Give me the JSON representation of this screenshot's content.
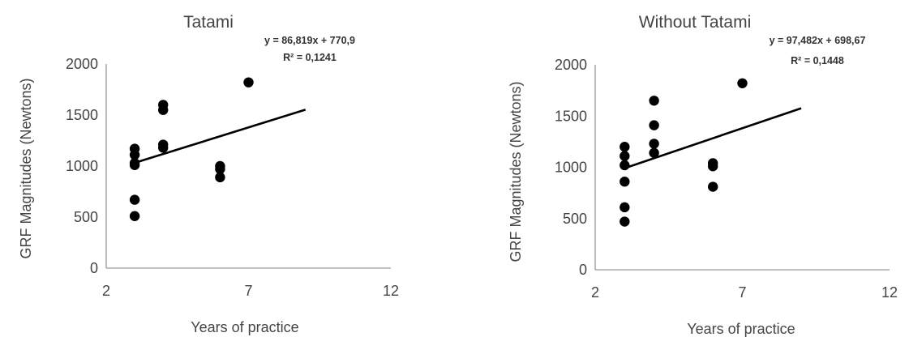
{
  "chart_data": [
    {
      "type": "scatter",
      "title": "Tatami",
      "xlabel": "Years of practice",
      "ylabel": "GRF Magnitudes  (Newtons)",
      "xlim": [
        2,
        12
      ],
      "ylim": [
        0,
        2000
      ],
      "xticks": [
        "2",
        "7",
        "12"
      ],
      "yticks": [
        "0",
        "500",
        "1000",
        "1500",
        "2000"
      ],
      "grid": false,
      "legend": "none",
      "points": [
        {
          "x": 3,
          "y": 510
        },
        {
          "x": 3,
          "y": 670
        },
        {
          "x": 3,
          "y": 1010
        },
        {
          "x": 3,
          "y": 1030
        },
        {
          "x": 3,
          "y": 1110
        },
        {
          "x": 3,
          "y": 1170
        },
        {
          "x": 4,
          "y": 1180
        },
        {
          "x": 4,
          "y": 1210
        },
        {
          "x": 4,
          "y": 1550
        },
        {
          "x": 4,
          "y": 1600
        },
        {
          "x": 6,
          "y": 890
        },
        {
          "x": 6,
          "y": 970
        },
        {
          "x": 6,
          "y": 1000
        },
        {
          "x": 7,
          "y": 1820
        }
      ],
      "trendline": {
        "slope": 86.819,
        "intercept": 770.9,
        "x_range": [
          3,
          9
        ]
      },
      "equation": "y = 86,819x + 770,9",
      "r_squared": "R² = 0,1241"
    },
    {
      "type": "scatter",
      "title": "Without Tatami",
      "xlabel": "Years of practice",
      "ylabel": "GRF Magnitudes (Newtons)",
      "xlim": [
        2,
        12
      ],
      "ylim": [
        0,
        2000
      ],
      "xticks": [
        "2",
        "7",
        "12"
      ],
      "yticks": [
        "0",
        "500",
        "1000",
        "1500",
        "2000"
      ],
      "grid": false,
      "legend": "none",
      "points": [
        {
          "x": 3,
          "y": 470
        },
        {
          "x": 3,
          "y": 610
        },
        {
          "x": 3,
          "y": 860
        },
        {
          "x": 3,
          "y": 1020
        },
        {
          "x": 3,
          "y": 1110
        },
        {
          "x": 3,
          "y": 1200
        },
        {
          "x": 4,
          "y": 1140
        },
        {
          "x": 4,
          "y": 1230
        },
        {
          "x": 4,
          "y": 1410
        },
        {
          "x": 4,
          "y": 1650
        },
        {
          "x": 6,
          "y": 810
        },
        {
          "x": 6,
          "y": 1010
        },
        {
          "x": 6,
          "y": 1040
        },
        {
          "x": 7,
          "y": 1820
        }
      ],
      "trendline": {
        "slope": 97.482,
        "intercept": 698.67,
        "x_range": [
          3,
          9
        ]
      },
      "equation": "y = 97,482x + 698,67",
      "r_squared": "R² = 0,1448"
    }
  ]
}
